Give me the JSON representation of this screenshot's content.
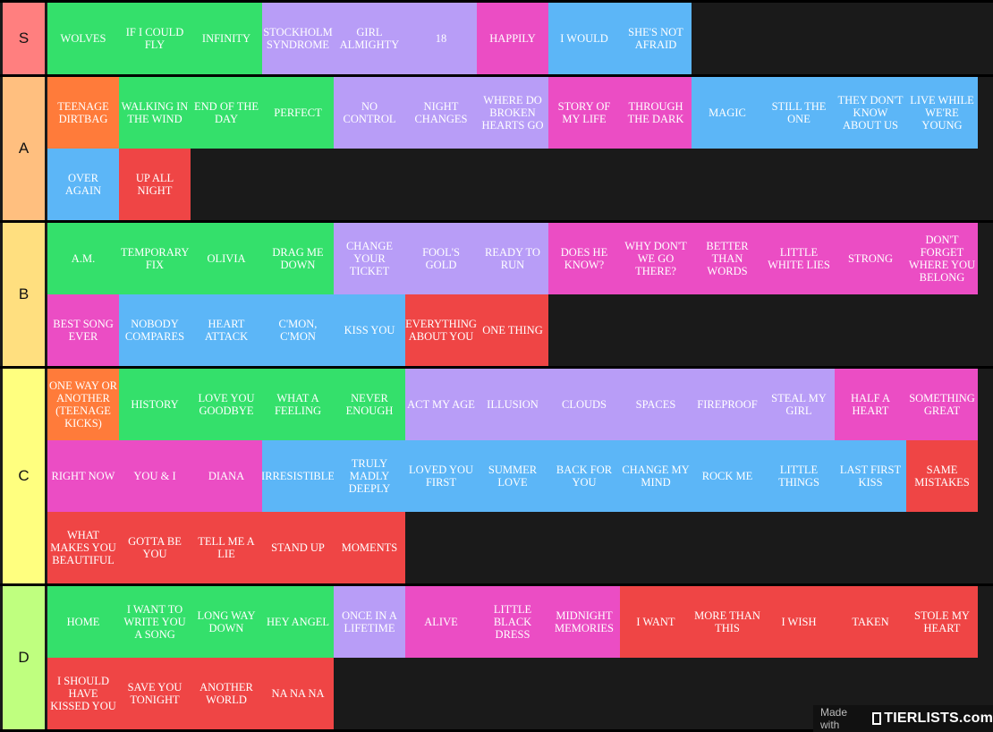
{
  "colors": {
    "green": "#34E06B",
    "purple": "#B89DF7",
    "pink": "#EB4DC4",
    "blue": "#5CB6F7",
    "orange": "#FF7B3A",
    "red": "#EF4545",
    "tier_S": "#FF7F7F",
    "tier_A": "#FFBF7F",
    "tier_B": "#FFDF7F",
    "tier_C": "#FFFF7F",
    "tier_D": "#BFFF7F"
  },
  "tiers": [
    {
      "label": "S",
      "items": [
        {
          "text": "WOLVES",
          "color": "green"
        },
        {
          "text": "IF I COULD FLY",
          "color": "green"
        },
        {
          "text": "INFINITY",
          "color": "green"
        },
        {
          "text": "STOCKHOLM SYNDROME",
          "color": "purple"
        },
        {
          "text": "GIRL ALMIGHTY",
          "color": "purple"
        },
        {
          "text": "18",
          "color": "purple"
        },
        {
          "text": "HAPPILY",
          "color": "pink"
        },
        {
          "text": "I WOULD",
          "color": "blue"
        },
        {
          "text": "SHE'S NOT AFRAID",
          "color": "blue"
        }
      ]
    },
    {
      "label": "A",
      "items": [
        {
          "text": "TEENAGE DIRTBAG",
          "color": "orange"
        },
        {
          "text": "WALKING IN THE WIND",
          "color": "green"
        },
        {
          "text": "END OF THE DAY",
          "color": "green"
        },
        {
          "text": "PERFECT",
          "color": "green"
        },
        {
          "text": "NO CONTROL",
          "color": "purple"
        },
        {
          "text": "NIGHT CHANGES",
          "color": "purple"
        },
        {
          "text": "WHERE DO BROKEN HEARTS GO",
          "color": "purple"
        },
        {
          "text": "STORY OF MY LIFE",
          "color": "pink"
        },
        {
          "text": "THROUGH THE DARK",
          "color": "pink"
        },
        {
          "text": "MAGIC",
          "color": "blue"
        },
        {
          "text": "STILL THE ONE",
          "color": "blue"
        },
        {
          "text": "THEY DON'T KNOW ABOUT US",
          "color": "blue"
        },
        {
          "text": "LIVE WHILE WE'RE YOUNG",
          "color": "blue"
        },
        {
          "text": "OVER AGAIN",
          "color": "blue"
        },
        {
          "text": "UP ALL NIGHT",
          "color": "red"
        }
      ]
    },
    {
      "label": "B",
      "items": [
        {
          "text": "A.M.",
          "color": "green"
        },
        {
          "text": "TEMPORARY FIX",
          "color": "green"
        },
        {
          "text": "OLIVIA",
          "color": "green"
        },
        {
          "text": "DRAG ME DOWN",
          "color": "green"
        },
        {
          "text": "CHANGE YOUR TICKET",
          "color": "purple"
        },
        {
          "text": "FOOL'S GOLD",
          "color": "purple"
        },
        {
          "text": "READY TO RUN",
          "color": "purple"
        },
        {
          "text": "DOES HE KNOW?",
          "color": "pink"
        },
        {
          "text": "WHY DON'T WE GO THERE?",
          "color": "pink"
        },
        {
          "text": "BETTER THAN WORDS",
          "color": "pink"
        },
        {
          "text": "LITTLE WHITE LIES",
          "color": "pink"
        },
        {
          "text": "STRONG",
          "color": "pink"
        },
        {
          "text": "DON'T FORGET WHERE YOU BELONG",
          "color": "pink"
        },
        {
          "text": "BEST SONG EVER",
          "color": "pink"
        },
        {
          "text": "NOBODY COMPARES",
          "color": "blue"
        },
        {
          "text": "HEART ATTACK",
          "color": "blue"
        },
        {
          "text": "C'MON, C'MON",
          "color": "blue"
        },
        {
          "text": "KISS YOU",
          "color": "blue"
        },
        {
          "text": "EVERYTHING ABOUT YOU",
          "color": "red"
        },
        {
          "text": "ONE THING",
          "color": "red"
        }
      ]
    },
    {
      "label": "C",
      "items": [
        {
          "text": "ONE WAY OR ANOTHER (TEENAGE KICKS)",
          "color": "orange"
        },
        {
          "text": "HISTORY",
          "color": "green"
        },
        {
          "text": "LOVE YOU GOODBYE",
          "color": "green"
        },
        {
          "text": "WHAT A FEELING",
          "color": "green"
        },
        {
          "text": "NEVER ENOUGH",
          "color": "green"
        },
        {
          "text": "ACT MY AGE",
          "color": "purple"
        },
        {
          "text": "ILLUSION",
          "color": "purple"
        },
        {
          "text": "CLOUDS",
          "color": "purple"
        },
        {
          "text": "SPACES",
          "color": "purple"
        },
        {
          "text": "FIREPROOF",
          "color": "purple"
        },
        {
          "text": "STEAL MY GIRL",
          "color": "purple"
        },
        {
          "text": "HALF A HEART",
          "color": "pink"
        },
        {
          "text": "SOMETHING GREAT",
          "color": "pink"
        },
        {
          "text": "RIGHT NOW",
          "color": "pink"
        },
        {
          "text": "YOU & I",
          "color": "pink"
        },
        {
          "text": "DIANA",
          "color": "pink"
        },
        {
          "text": "IRRESISTIBLE",
          "color": "blue"
        },
        {
          "text": "TRULY MADLY DEEPLY",
          "color": "blue"
        },
        {
          "text": "LOVED YOU FIRST",
          "color": "blue"
        },
        {
          "text": "SUMMER LOVE",
          "color": "blue"
        },
        {
          "text": "BACK FOR YOU",
          "color": "blue"
        },
        {
          "text": "CHANGE MY MIND",
          "color": "blue"
        },
        {
          "text": "ROCK ME",
          "color": "blue"
        },
        {
          "text": "LITTLE THINGS",
          "color": "blue"
        },
        {
          "text": "LAST FIRST KISS",
          "color": "blue"
        },
        {
          "text": "SAME MISTAKES",
          "color": "red"
        },
        {
          "text": "WHAT MAKES YOU BEAUTIFUL",
          "color": "red"
        },
        {
          "text": "GOTTA BE YOU",
          "color": "red"
        },
        {
          "text": "TELL ME A LIE",
          "color": "red"
        },
        {
          "text": "STAND UP",
          "color": "red"
        },
        {
          "text": "MOMENTS",
          "color": "red"
        }
      ]
    },
    {
      "label": "D",
      "items": [
        {
          "text": "HOME",
          "color": "green"
        },
        {
          "text": "I WANT TO WRITE YOU A SONG",
          "color": "green"
        },
        {
          "text": "LONG WAY DOWN",
          "color": "green"
        },
        {
          "text": "HEY ANGEL",
          "color": "green"
        },
        {
          "text": "ONCE IN A LIFETIME",
          "color": "purple"
        },
        {
          "text": "ALIVE",
          "color": "pink"
        },
        {
          "text": "LITTLE BLACK DRESS",
          "color": "pink"
        },
        {
          "text": "MIDNIGHT MEMORIES",
          "color": "pink"
        },
        {
          "text": "I WANT",
          "color": "red"
        },
        {
          "text": "MORE THAN THIS",
          "color": "red"
        },
        {
          "text": "I WISH",
          "color": "red"
        },
        {
          "text": "TAKEN",
          "color": "red"
        },
        {
          "text": "STOLE MY HEART",
          "color": "red"
        },
        {
          "text": "I SHOULD HAVE KISSED YOU",
          "color": "red"
        },
        {
          "text": "SAVE YOU TONIGHT",
          "color": "red"
        },
        {
          "text": "ANOTHER WORLD",
          "color": "red"
        },
        {
          "text": "NA NA NA",
          "color": "red"
        }
      ]
    }
  ],
  "watermark": {
    "made_with": "Made with",
    "brand": "TIERLISTS.com",
    "icon": "tierlists-logo-icon"
  }
}
